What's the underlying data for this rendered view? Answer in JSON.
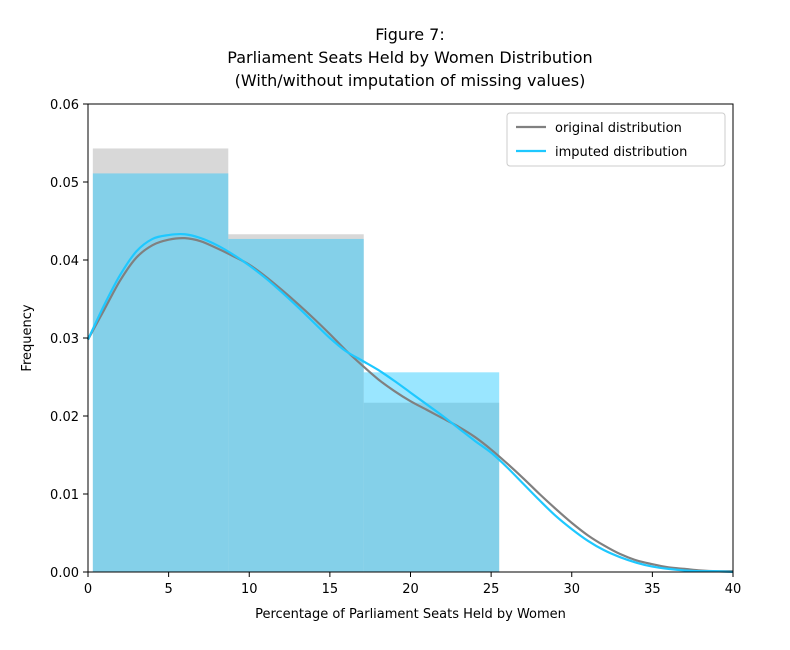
{
  "chart_data": {
    "type": "bar",
    "title_lines": [
      "Figure 7:",
      "Parliament Seats Held by Women Distribution",
      "(With/without imputation of missing values)"
    ],
    "xlabel": "Percentage of Parliament Seats Held by Women",
    "ylabel": "Frequency",
    "xlim": [
      0,
      40
    ],
    "ylim": [
      0,
      0.06
    ],
    "xticks": [
      0,
      5,
      10,
      15,
      20,
      25,
      30,
      35,
      40
    ],
    "xtick_labels": [
      "0",
      "5",
      "10",
      "15",
      "20",
      "25",
      "30",
      "35",
      "40"
    ],
    "yticks": [
      0,
      0.01,
      0.02,
      0.03,
      0.04,
      0.05,
      0.06
    ],
    "ytick_labels": [
      "0.00",
      "0.01",
      "0.02",
      "0.03",
      "0.04",
      "0.05",
      "0.06"
    ],
    "grid": false,
    "legend_position": "top-right",
    "histograms": [
      {
        "name": "original distribution",
        "color": "#a9a9a9",
        "bins": [
          {
            "x0": 0.3,
            "x1": 8.7,
            "value": 0.0543
          },
          {
            "x0": 8.7,
            "x1": 17.1,
            "value": 0.0433
          },
          {
            "x0": 17.1,
            "x1": 25.5,
            "value": 0.0217
          }
        ]
      },
      {
        "name": "imputed distribution",
        "color": "#1ec8ff",
        "bins": [
          {
            "x0": 0.3,
            "x1": 8.7,
            "value": 0.0511
          },
          {
            "x0": 8.7,
            "x1": 17.1,
            "value": 0.0427
          },
          {
            "x0": 17.1,
            "x1": 25.5,
            "value": 0.0256
          }
        ]
      }
    ],
    "series": [
      {
        "name": "original distribution",
        "color": "#808080",
        "x": [
          0,
          1,
          2,
          3,
          4,
          5,
          6,
          7,
          8,
          9,
          10,
          11,
          12,
          13,
          14,
          15,
          16,
          17,
          18,
          19,
          20,
          21,
          22,
          23,
          24,
          25,
          26,
          27,
          28,
          29,
          30,
          31,
          32,
          33,
          34,
          35,
          36,
          37,
          38,
          39,
          40
        ],
        "y": [
          0.0298,
          0.0336,
          0.0374,
          0.0403,
          0.0419,
          0.0426,
          0.0428,
          0.0424,
          0.0415,
          0.0405,
          0.0394,
          0.0379,
          0.0362,
          0.0344,
          0.0325,
          0.0305,
          0.0284,
          0.0265,
          0.0247,
          0.0232,
          0.0219,
          0.0208,
          0.0197,
          0.0186,
          0.0173,
          0.0157,
          0.0139,
          0.012,
          0.01,
          0.0081,
          0.0063,
          0.0047,
          0.0034,
          0.0023,
          0.0015,
          0.001,
          0.0006,
          0.0004,
          0.0002,
          0.0001,
          0.0001
        ]
      },
      {
        "name": "imputed distribution",
        "color": "#1ec8ff",
        "x": [
          0,
          1,
          2,
          3,
          4,
          5,
          6,
          7,
          8,
          9,
          10,
          11,
          12,
          13,
          14,
          15,
          16,
          17,
          18,
          19,
          20,
          21,
          22,
          23,
          24,
          25,
          26,
          27,
          28,
          29,
          30,
          31,
          32,
          33,
          34,
          35,
          36,
          37,
          38,
          39,
          40
        ],
        "y": [
          0.0298,
          0.0342,
          0.0381,
          0.0411,
          0.0427,
          0.0432,
          0.0433,
          0.0428,
          0.0419,
          0.0407,
          0.0393,
          0.0377,
          0.0359,
          0.034,
          0.032,
          0.03,
          0.0283,
          0.0271,
          0.0259,
          0.0245,
          0.023,
          0.0215,
          0.02,
          0.0184,
          0.0168,
          0.0153,
          0.0134,
          0.0113,
          0.0092,
          0.0072,
          0.0055,
          0.004,
          0.0028,
          0.0019,
          0.0012,
          0.0007,
          0.0004,
          0.0002,
          0.0001,
          0.0001,
          0.0
        ]
      }
    ]
  }
}
